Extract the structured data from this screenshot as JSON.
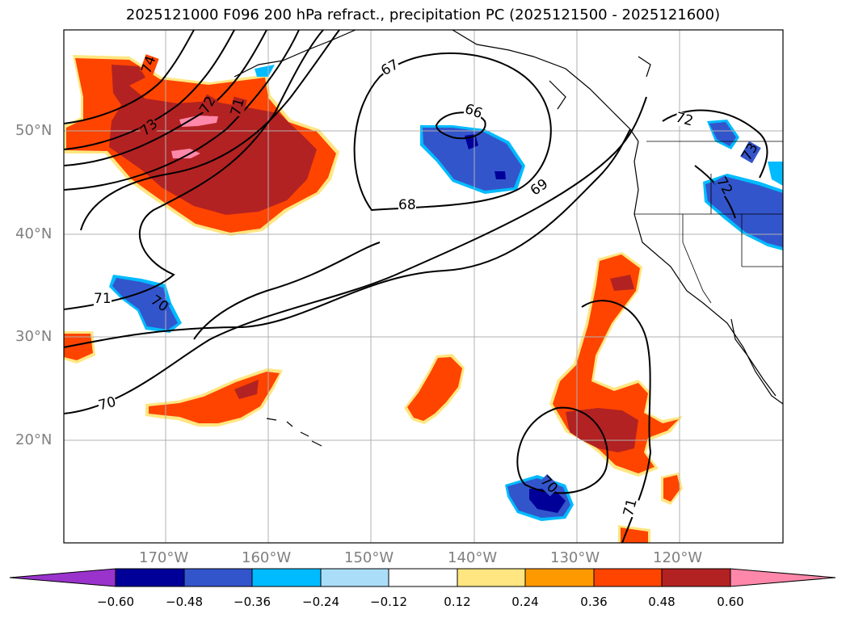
{
  "title": "2025121000 F096 200 hPa refract., precipitation PC (2025121500 - 2025121600)",
  "lat_labels": [
    "50°N",
    "40°N",
    "30°N",
    "20°N"
  ],
  "lon_labels": [
    "170°W",
    "160°W",
    "150°W",
    "140°W",
    "130°W",
    "120°W"
  ],
  "contour_labels": [
    "74",
    "73",
    "72",
    "71",
    "67",
    "66",
    "68",
    "69",
    "72",
    "73",
    "72",
    "71",
    "70",
    "70",
    "70",
    "71"
  ],
  "colorbar": {
    "ticks": [
      "−0.60",
      "−0.48",
      "−0.36",
      "−0.24",
      "−0.12",
      "0.12",
      "0.24",
      "0.36",
      "0.48",
      "0.60"
    ],
    "colors": [
      "#9933cc",
      "#000099",
      "#3355cc",
      "#00bbff",
      "#aaddf8",
      "#ffffff",
      "#ffe680",
      "#ff9900",
      "#ff4400",
      "#b22222",
      "#ff88aa",
      "#ff88aa"
    ]
  }
}
